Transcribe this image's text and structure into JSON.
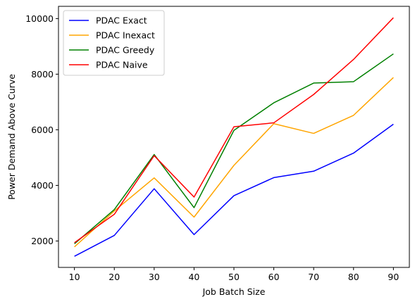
{
  "chart_data": {
    "type": "line",
    "xlabel": "Job Batch Size",
    "ylabel": "Power Demand Above Curve",
    "x": [
      10,
      20,
      30,
      40,
      50,
      60,
      70,
      80,
      90
    ],
    "x_ticks": [
      10,
      20,
      30,
      40,
      50,
      60,
      70,
      80,
      90
    ],
    "y_ticks": [
      2000,
      4000,
      6000,
      8000,
      10000
    ],
    "xlim": [
      6,
      94
    ],
    "ylim": [
      1050,
      10440
    ],
    "legend_position": "top-left",
    "grid": false,
    "series": [
      {
        "name": "PDAC Exact",
        "color": "#0000ff",
        "values": [
          1450,
          2200,
          3880,
          2230,
          3630,
          4280,
          4510,
          5160,
          6200
        ]
      },
      {
        "name": "PDAC Inexact",
        "color": "#ffa500",
        "values": [
          1790,
          3080,
          4270,
          2860,
          4720,
          6220,
          5870,
          6520,
          7880
        ]
      },
      {
        "name": "PDAC Greedy",
        "color": "#008000",
        "values": [
          1900,
          3130,
          5110,
          3200,
          5980,
          6970,
          7680,
          7730,
          8730
        ]
      },
      {
        "name": "PDAC Naive",
        "color": "#ff0000",
        "values": [
          1940,
          2960,
          5070,
          3580,
          6110,
          6250,
          7270,
          8530,
          10030
        ]
      }
    ]
  }
}
